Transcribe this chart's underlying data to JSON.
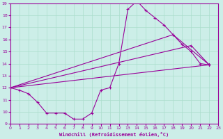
{
  "xlabel": "Windchill (Refroidissement éolien,°C)",
  "xlim": [
    0,
    23
  ],
  "ylim": [
    9,
    19
  ],
  "yticks": [
    9,
    10,
    11,
    12,
    13,
    14,
    15,
    16,
    17,
    18,
    19
  ],
  "xticks": [
    0,
    1,
    2,
    3,
    4,
    5,
    6,
    7,
    8,
    9,
    10,
    11,
    12,
    13,
    14,
    15,
    16,
    17,
    18,
    19,
    20,
    21,
    22,
    23
  ],
  "bg_color": "#cceee8",
  "line_color": "#990099",
  "grid_color": "#aaddcc",
  "line1_x": [
    0,
    1,
    2,
    3,
    4,
    5,
    6,
    7,
    8,
    9,
    10,
    11,
    12,
    13,
    14,
    15,
    16,
    17,
    18,
    19,
    20,
    21,
    22
  ],
  "line1_y": [
    12.0,
    11.8,
    11.5,
    10.8,
    9.9,
    9.9,
    9.9,
    9.4,
    9.4,
    9.9,
    11.8,
    12.0,
    14.0,
    18.5,
    19.2,
    18.4,
    17.8,
    17.2,
    16.4,
    15.6,
    15.0,
    14.0,
    13.9
  ],
  "line2_x": [
    0,
    22
  ],
  "line2_y": [
    12.0,
    13.9
  ],
  "line3_x": [
    0,
    20,
    22
  ],
  "line3_y": [
    12.0,
    15.5,
    13.9
  ],
  "line4_x": [
    0,
    18,
    22
  ],
  "line4_y": [
    12.0,
    16.4,
    13.9
  ]
}
